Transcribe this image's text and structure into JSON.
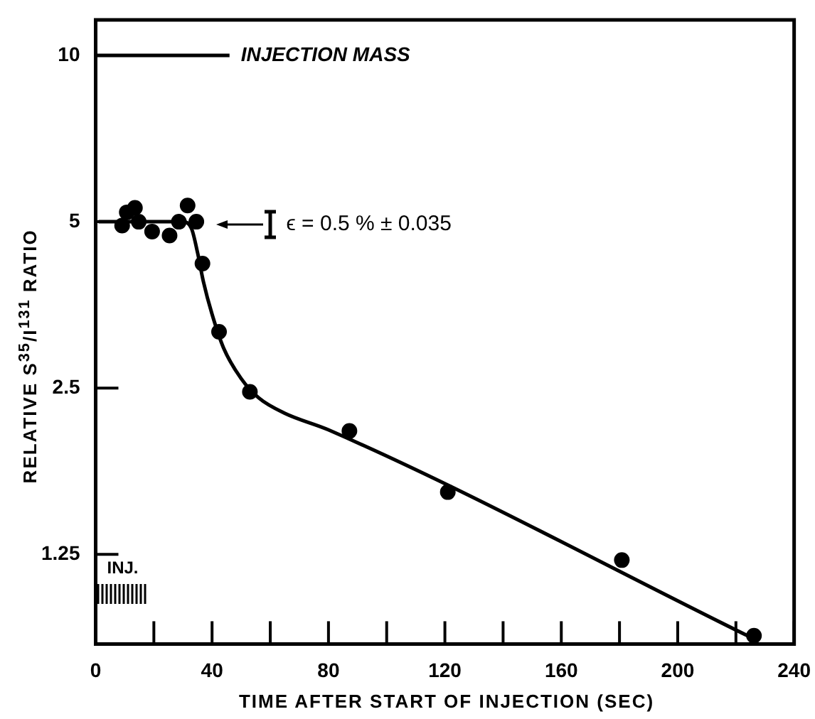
{
  "chart_data": {
    "type": "scatter",
    "xlabel": "TIME AFTER START OF INJECTION (SEC)",
    "ylabel": "RELATIVE S$^{35}$/I$^{131}$ RATIO",
    "log": "y",
    "xlim": [
      0,
      240
    ],
    "ylim": [
      0.86,
      11.6
    ],
    "xticks": [
      0,
      {
        "value": 20,
        "label": null
      },
      40,
      {
        "value": 60,
        "label": null
      },
      80,
      {
        "value": 100,
        "label": null
      },
      120,
      {
        "value": 140,
        "label": null
      },
      160,
      {
        "value": 180,
        "label": null
      },
      200,
      {
        "value": 220,
        "label": null
      },
      240
    ],
    "yticks": [
      1.25,
      2.5,
      5,
      10
    ],
    "series": [
      {
        "type": "scatter",
        "marker": "circle",
        "color": "#000000",
        "x": [
          9.1,
          10.7,
          13.5,
          14.8,
          19.4,
          25.4,
          28.6,
          31.6,
          34.6,
          36.7,
          42.4,
          53,
          87.2,
          121,
          180.8,
          226.2
        ],
        "values": [
          4.92,
          5.2,
          5.3,
          5.0,
          4.8,
          4.72,
          5.0,
          5.35,
          5.0,
          4.2,
          3.16,
          2.46,
          2.09,
          1.62,
          1.22,
          0.89
        ]
      },
      {
        "type": "line",
        "marker": "none",
        "color": "#000000",
        "x": [
          1,
          30,
          33,
          35,
          37,
          40,
          44,
          50,
          56,
          65,
          80,
          224
        ],
        "values": [
          5,
          5,
          4.85,
          4.4,
          3.9,
          3.4,
          2.95,
          2.6,
          2.4,
          2.25,
          2.1,
          0.89
        ]
      },
      {
        "type": "line",
        "marker": "none",
        "name": "INJECTION MASS",
        "color": "#000000",
        "x": [
          0,
          46
        ],
        "values": [
          10,
          10
        ]
      }
    ],
    "annotations": [
      "ϵ = 0.5 % ± 0.035",
      "INJ."
    ]
  }
}
